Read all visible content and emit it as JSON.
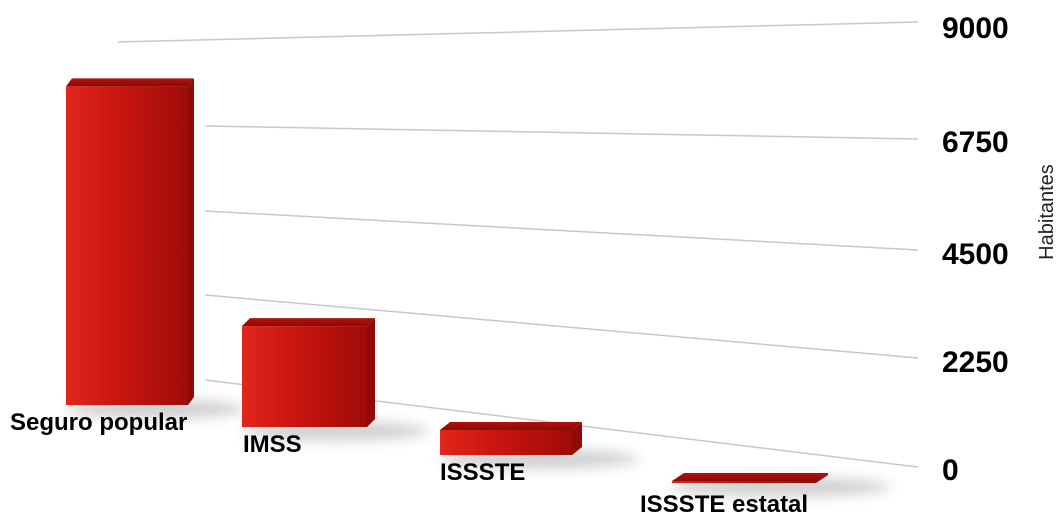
{
  "chart_data": {
    "type": "bar",
    "title": "",
    "xlabel": "",
    "ylabel": "Habitantes",
    "categories": [
      "Seguro popular",
      "IMSS",
      "ISSSTE",
      "ISSSTE estatal"
    ],
    "values": [
      8400,
      2800,
      850,
      180
    ],
    "ylim": [
      0,
      9000
    ],
    "yticks": [
      "0",
      "2250",
      "4500",
      "6750",
      "9000"
    ],
    "grid": true,
    "style": "3d-perspective",
    "colors": {
      "bar_front": "#c8140f",
      "bar_top": "#a50d08",
      "bar_side": "#8f0b07",
      "gridline": "#c8c8c8"
    }
  }
}
